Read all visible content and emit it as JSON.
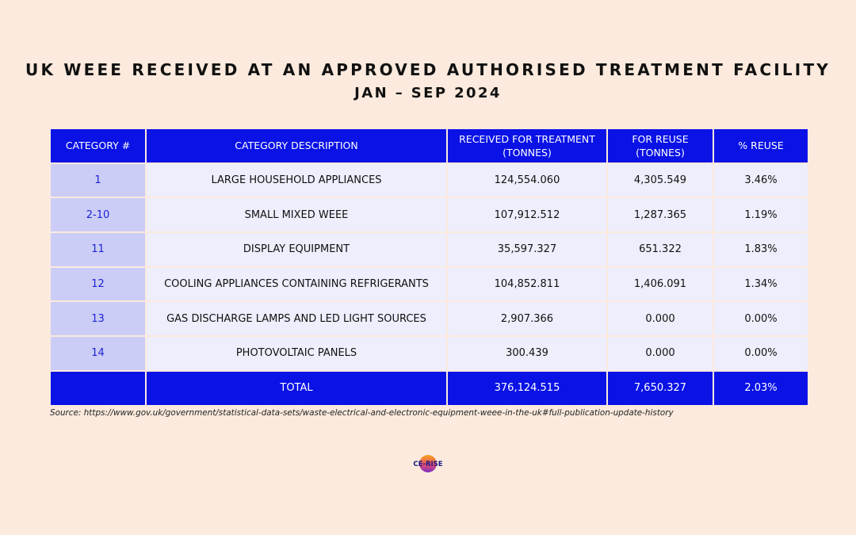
{
  "title": "UK WEEE RECEIVED AT AN APPROVED AUTHORISED TREATMENT FACILITY",
  "subtitle": "JAN – SEP 2024",
  "table": {
    "headers": {
      "category": "CATEGORY #",
      "description": "CATEGORY DESCRIPTION",
      "received": "RECEIVED FOR TREATMENT (TONNES)",
      "reuse": "FOR REUSE (TONNES)",
      "pct": "% REUSE"
    },
    "rows": [
      {
        "category": "1",
        "description": "LARGE HOUSEHOLD APPLIANCES",
        "received": "124,554.060",
        "reuse": "4,305.549",
        "pct": "3.46%"
      },
      {
        "category": "2-10",
        "description": "SMALL MIXED WEEE",
        "received": "107,912.512",
        "reuse": "1,287.365",
        "pct": "1.19%"
      },
      {
        "category": "11",
        "description": "DISPLAY EQUIPMENT",
        "received": "35,597.327",
        "reuse": "651.322",
        "pct": "1.83%"
      },
      {
        "category": "12",
        "description": "COOLING APPLIANCES CONTAINING REFRIGERANTS",
        "received": "104,852.811",
        "reuse": "1,406.091",
        "pct": "1.34%"
      },
      {
        "category": "13",
        "description": "GAS DISCHARGE LAMPS AND LED LIGHT SOURCES",
        "received": "2,907.366",
        "reuse": "0.000",
        "pct": "0.00%"
      },
      {
        "category": "14",
        "description": "PHOTOVOLTAIC PANELS",
        "received": "300.439",
        "reuse": "0.000",
        "pct": "0.00%"
      }
    ],
    "total": {
      "category": "",
      "description": "TOTAL",
      "received": "376,124.515",
      "reuse": "7,650.327",
      "pct": "2.03%"
    }
  },
  "source": "Source: https://www.gov.uk/government/statistical-data-sets/waste-electrical-and-electronic-equipment-weee-in-the-uk#full-publication-update-history",
  "logo": {
    "text": "CE-RISE"
  },
  "colors": {
    "background": "#fbeadd",
    "header_blue": "#0a12e6",
    "category_cell": "#cbcdf6",
    "body_cell": "#eeeefc"
  }
}
